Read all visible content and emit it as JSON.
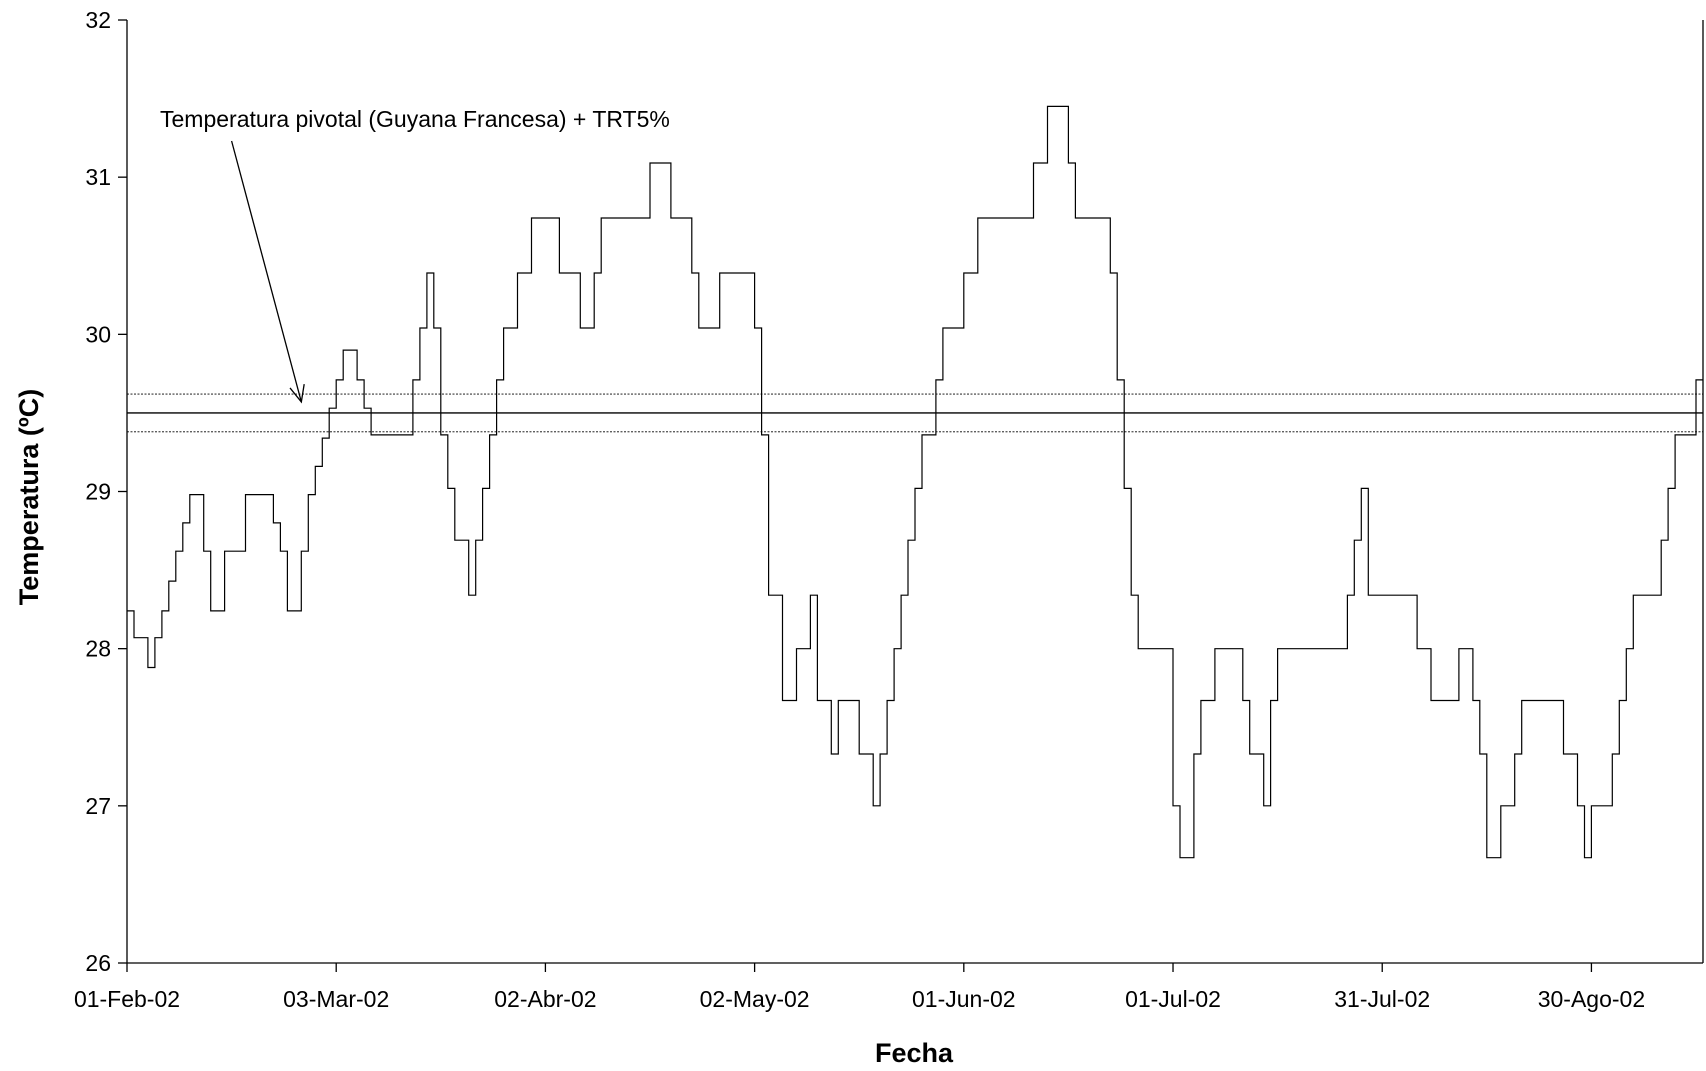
{
  "chart_data": {
    "type": "line",
    "title": "",
    "xlabel": "Fecha",
    "ylabel": "Temperatura (ºC)",
    "xlim": [
      "2002-02-01",
      "2002-09-15"
    ],
    "ylim": [
      26,
      32
    ],
    "grid": false,
    "x_ticks": [
      {
        "date": "2002-02-01",
        "label": "01-Feb-02"
      },
      {
        "date": "2002-03-03",
        "label": "03-Mar-02"
      },
      {
        "date": "2002-04-02",
        "label": "02-Abr-02"
      },
      {
        "date": "2002-05-02",
        "label": "02-May-02"
      },
      {
        "date": "2002-06-01",
        "label": "01-Jun-02"
      },
      {
        "date": "2002-07-01",
        "label": "01-Jul-02"
      },
      {
        "date": "2002-07-31",
        "label": "31-Jul-02"
      },
      {
        "date": "2002-08-30",
        "label": "30-Ago-02"
      }
    ],
    "y_ticks": [
      {
        "value": 26,
        "label": "26"
      },
      {
        "value": 27,
        "label": "27"
      },
      {
        "value": 28,
        "label": "28"
      },
      {
        "value": 29,
        "label": "29"
      },
      {
        "value": 30,
        "label": "30"
      },
      {
        "value": 31,
        "label": "31"
      },
      {
        "value": 32,
        "label": "32"
      }
    ],
    "reference_lines": [
      {
        "y": 29.62,
        "style": "dotted"
      },
      {
        "y": 29.5,
        "style": "solid"
      },
      {
        "y": 29.38,
        "style": "dotted"
      }
    ],
    "annotation": {
      "text": "Temperatura pivotal (Guyana Francesa) + TRT5%",
      "arrow_from": [
        "2002-02-16",
        31.23
      ],
      "arrow_to": [
        "2002-02-26",
        29.57
      ]
    },
    "series": [
      {
        "x": [
          "2002-02-01",
          "2002-02-02",
          "2002-02-03",
          "2002-02-04",
          "2002-02-05",
          "2002-02-06",
          "2002-02-07",
          "2002-02-08",
          "2002-02-09",
          "2002-02-10",
          "2002-02-11",
          "2002-02-12",
          "2002-02-13",
          "2002-02-14",
          "2002-02-15",
          "2002-02-16",
          "2002-02-17",
          "2002-02-18",
          "2002-02-19",
          "2002-02-20",
          "2002-02-21",
          "2002-02-22",
          "2002-02-23",
          "2002-02-24",
          "2002-02-25",
          "2002-02-26",
          "2002-02-27",
          "2002-02-28",
          "2002-03-01",
          "2002-03-02",
          "2002-03-03",
          "2002-03-04",
          "2002-03-05",
          "2002-03-06",
          "2002-03-07",
          "2002-03-08",
          "2002-03-09",
          "2002-03-10",
          "2002-03-11",
          "2002-03-12",
          "2002-03-13",
          "2002-03-14",
          "2002-03-15",
          "2002-03-16",
          "2002-03-17",
          "2002-03-18",
          "2002-03-19",
          "2002-03-20",
          "2002-03-21",
          "2002-03-22",
          "2002-03-23",
          "2002-03-24",
          "2002-03-25",
          "2002-03-26",
          "2002-03-27",
          "2002-03-28",
          "2002-03-29",
          "2002-03-30",
          "2002-03-31",
          "2002-04-01",
          "2002-04-02",
          "2002-04-03",
          "2002-04-04",
          "2002-04-05",
          "2002-04-06",
          "2002-04-07",
          "2002-04-08",
          "2002-04-09",
          "2002-04-10",
          "2002-04-11",
          "2002-04-12",
          "2002-04-13",
          "2002-04-14",
          "2002-04-15",
          "2002-04-16",
          "2002-04-17",
          "2002-04-18",
          "2002-04-19",
          "2002-04-20",
          "2002-04-21",
          "2002-04-22",
          "2002-04-23",
          "2002-04-24",
          "2002-04-25",
          "2002-04-26",
          "2002-04-27",
          "2002-04-28",
          "2002-04-29",
          "2002-04-30",
          "2002-05-01",
          "2002-05-02",
          "2002-05-03",
          "2002-05-04",
          "2002-05-05",
          "2002-05-06",
          "2002-05-07",
          "2002-05-08",
          "2002-05-09",
          "2002-05-10",
          "2002-05-11",
          "2002-05-12",
          "2002-05-13",
          "2002-05-14",
          "2002-05-15",
          "2002-05-16",
          "2002-05-17",
          "2002-05-18",
          "2002-05-19",
          "2002-05-20",
          "2002-05-21",
          "2002-05-22",
          "2002-05-23",
          "2002-05-24",
          "2002-05-25",
          "2002-05-26",
          "2002-05-27",
          "2002-05-28",
          "2002-05-29",
          "2002-05-30",
          "2002-05-31",
          "2002-06-01",
          "2002-06-02",
          "2002-06-03",
          "2002-06-04",
          "2002-06-05",
          "2002-06-06",
          "2002-06-07",
          "2002-06-08",
          "2002-06-09",
          "2002-06-10",
          "2002-06-11",
          "2002-06-12",
          "2002-06-13",
          "2002-06-14",
          "2002-06-15",
          "2002-06-16",
          "2002-06-17",
          "2002-06-18",
          "2002-06-19",
          "2002-06-20",
          "2002-06-21",
          "2002-06-22",
          "2002-06-23",
          "2002-06-24",
          "2002-06-25",
          "2002-06-26",
          "2002-06-27",
          "2002-06-28",
          "2002-06-29",
          "2002-06-30",
          "2002-07-01",
          "2002-07-02",
          "2002-07-03",
          "2002-07-04",
          "2002-07-05",
          "2002-07-06",
          "2002-07-07",
          "2002-07-08",
          "2002-07-09",
          "2002-07-10",
          "2002-07-11",
          "2002-07-12",
          "2002-07-13",
          "2002-07-14",
          "2002-07-15",
          "2002-07-16",
          "2002-07-17",
          "2002-07-18",
          "2002-07-19",
          "2002-07-20",
          "2002-07-21",
          "2002-07-22",
          "2002-07-23",
          "2002-07-24",
          "2002-07-25",
          "2002-07-26",
          "2002-07-27",
          "2002-07-28",
          "2002-07-29",
          "2002-07-30",
          "2002-07-31",
          "2002-08-01",
          "2002-08-02",
          "2002-08-03",
          "2002-08-04",
          "2002-08-05",
          "2002-08-06",
          "2002-08-07",
          "2002-08-08",
          "2002-08-09",
          "2002-08-10",
          "2002-08-11",
          "2002-08-12",
          "2002-08-13",
          "2002-08-14",
          "2002-08-15",
          "2002-08-16",
          "2002-08-17",
          "2002-08-18",
          "2002-08-19",
          "2002-08-20",
          "2002-08-21",
          "2002-08-22",
          "2002-08-23",
          "2002-08-24",
          "2002-08-25",
          "2002-08-26",
          "2002-08-27",
          "2002-08-28",
          "2002-08-29",
          "2002-08-30",
          "2002-08-31",
          "2002-09-01",
          "2002-09-02",
          "2002-09-03",
          "2002-09-04",
          "2002-09-05",
          "2002-09-06",
          "2002-09-07",
          "2002-09-08",
          "2002-09-09",
          "2002-09-10",
          "2002-09-11",
          "2002-09-12",
          "2002-09-13",
          "2002-09-14",
          "2002-09-15"
        ],
        "y": [
          28.24,
          28.07,
          28.07,
          27.88,
          28.07,
          28.24,
          28.43,
          28.62,
          28.8,
          28.98,
          28.98,
          28.62,
          28.24,
          28.24,
          28.62,
          28.62,
          28.62,
          28.98,
          28.98,
          28.98,
          28.98,
          28.8,
          28.62,
          28.24,
          28.24,
          28.62,
          28.98,
          29.16,
          29.34,
          29.53,
          29.71,
          29.9,
          29.9,
          29.71,
          29.53,
          29.36,
          29.36,
          29.36,
          29.36,
          29.36,
          29.36,
          29.71,
          30.04,
          30.39,
          30.04,
          29.36,
          29.02,
          28.69,
          28.69,
          28.34,
          28.69,
          29.02,
          29.36,
          29.71,
          30.04,
          30.04,
          30.39,
          30.39,
          30.74,
          30.74,
          30.74,
          30.74,
          30.39,
          30.39,
          30.39,
          30.04,
          30.04,
          30.39,
          30.74,
          30.74,
          30.74,
          30.74,
          30.74,
          30.74,
          30.74,
          31.09,
          31.09,
          31.09,
          30.74,
          30.74,
          30.74,
          30.39,
          30.04,
          30.04,
          30.04,
          30.39,
          30.39,
          30.39,
          30.39,
          30.39,
          30.04,
          29.36,
          28.34,
          28.34,
          27.67,
          27.67,
          28.0,
          28.0,
          28.34,
          27.67,
          27.67,
          27.33,
          27.67,
          27.67,
          27.67,
          27.33,
          27.33,
          27.0,
          27.33,
          27.67,
          28.0,
          28.34,
          28.69,
          29.02,
          29.36,
          29.36,
          29.71,
          30.04,
          30.04,
          30.04,
          30.39,
          30.39,
          30.74,
          30.74,
          30.74,
          30.74,
          30.74,
          30.74,
          30.74,
          30.74,
          31.09,
          31.09,
          31.45,
          31.45,
          31.45,
          31.09,
          30.74,
          30.74,
          30.74,
          30.74,
          30.74,
          30.39,
          29.71,
          29.02,
          28.34,
          28.0,
          28.0,
          28.0,
          28.0,
          28.0,
          27.0,
          26.67,
          26.67,
          27.33,
          27.67,
          27.67,
          28.0,
          28.0,
          28.0,
          28.0,
          27.67,
          27.33,
          27.33,
          27.0,
          27.67,
          28.0,
          28.0,
          28.0,
          28.0,
          28.0,
          28.0,
          28.0,
          28.0,
          28.0,
          28.0,
          28.34,
          28.69,
          29.02,
          28.34,
          28.34,
          28.34,
          28.34,
          28.34,
          28.34,
          28.34,
          28.0,
          28.0,
          27.67,
          27.67,
          27.67,
          27.67,
          28.0,
          28.0,
          27.67,
          27.33,
          26.67,
          26.67,
          27.0,
          27.0,
          27.33,
          27.67,
          27.67,
          27.67,
          27.67,
          27.67,
          27.67,
          27.33,
          27.33,
          27.0,
          26.67,
          27.0,
          27.0,
          27.0,
          27.33,
          27.67,
          28.0,
          28.34,
          28.34,
          28.34,
          28.34,
          28.69,
          29.02,
          29.36,
          29.36,
          29.36,
          29.71,
          29.71
        ]
      }
    ]
  }
}
